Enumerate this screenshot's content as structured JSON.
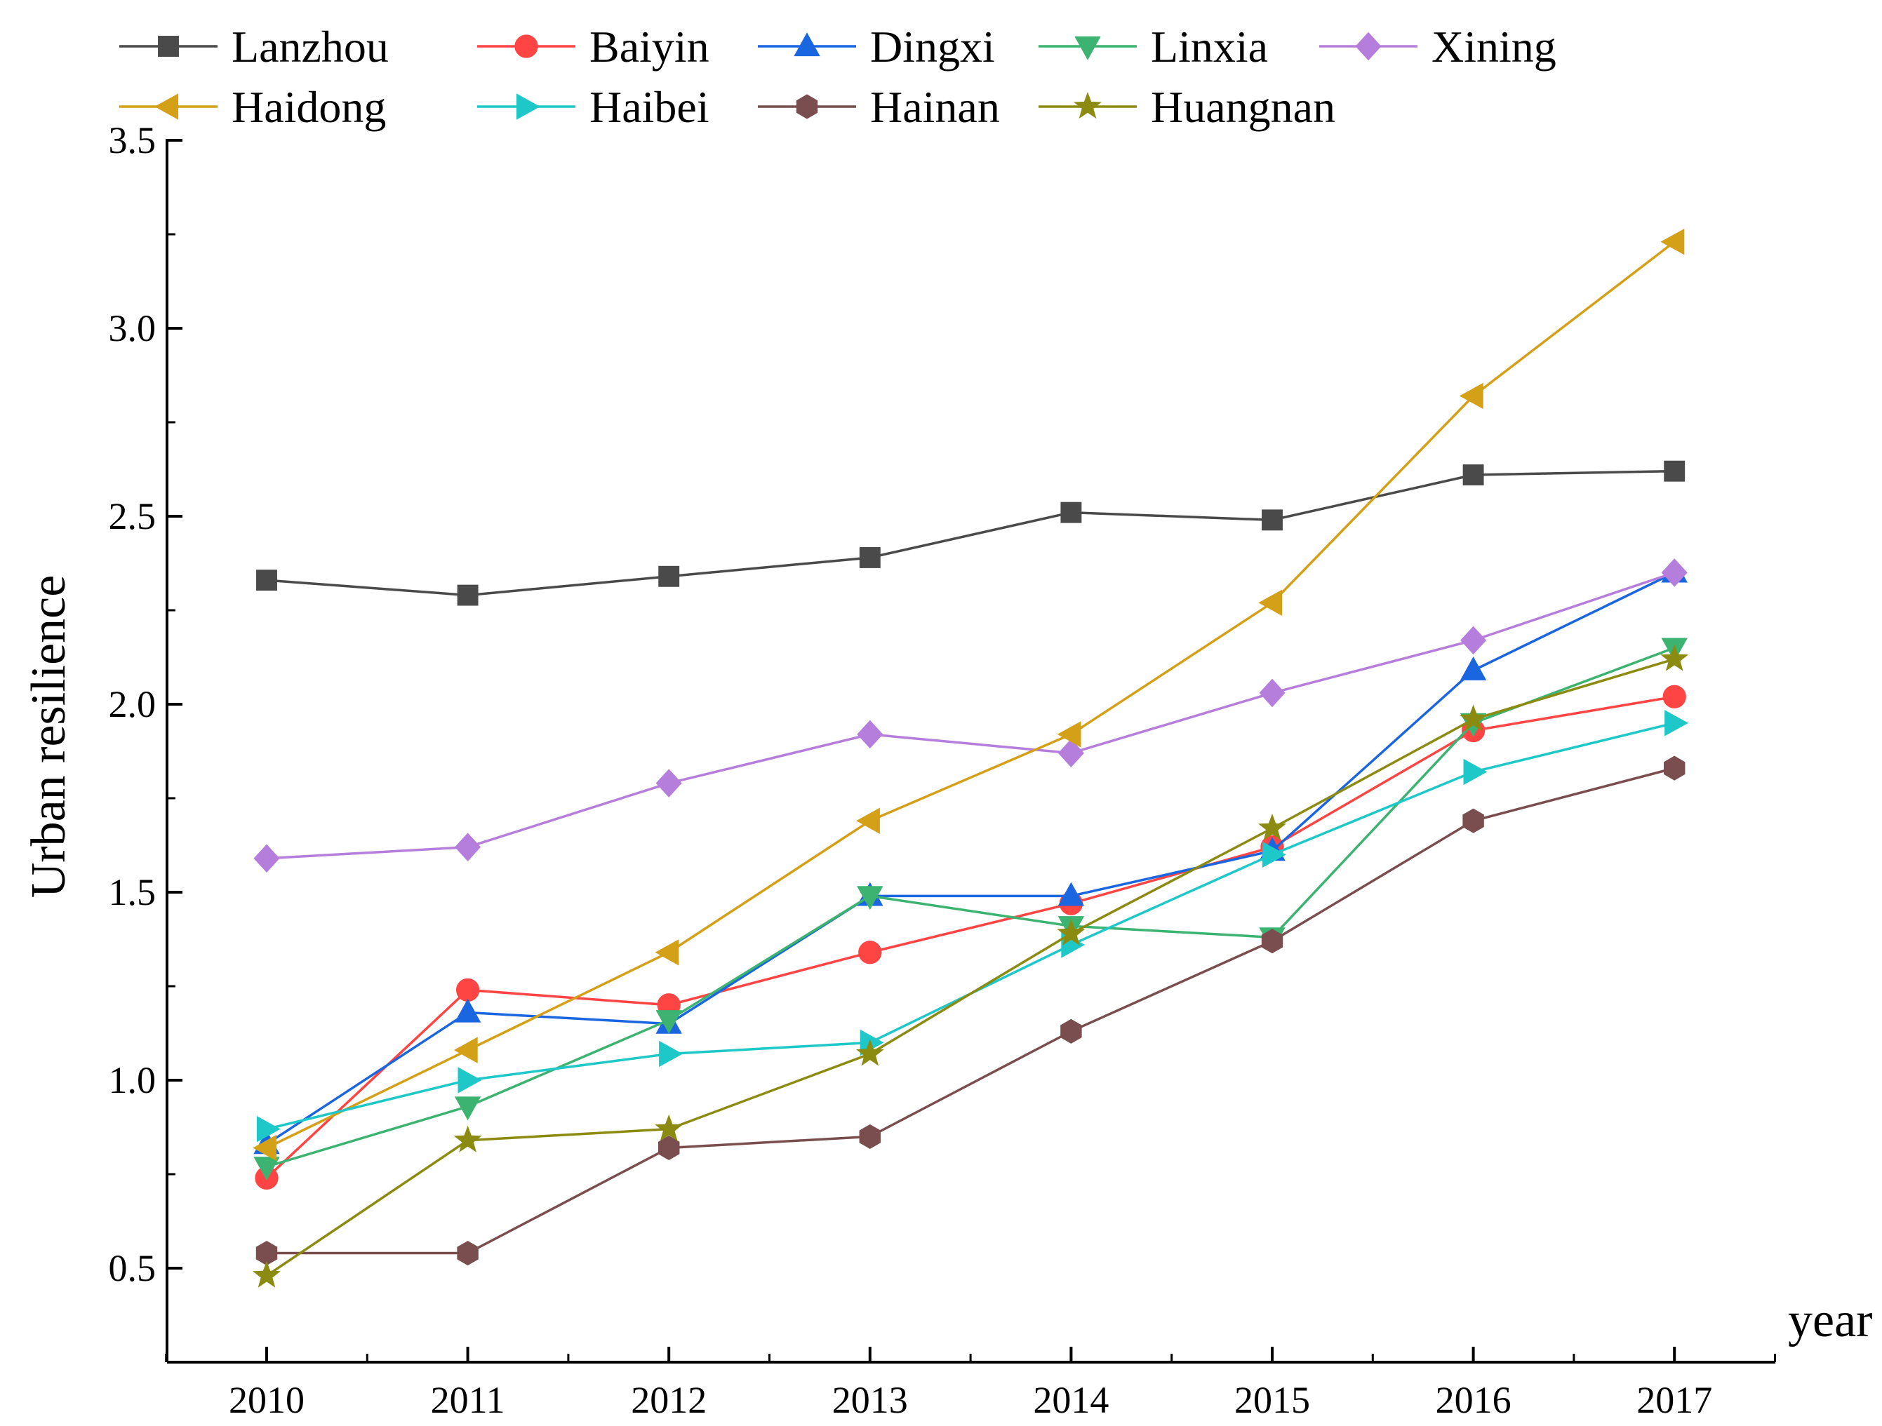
{
  "chart_data": {
    "type": "line",
    "title": "",
    "xlabel": "year",
    "ylabel": "Urban resilience",
    "categories": [
      "2010",
      "2011",
      "2012",
      "2013",
      "2014",
      "2015",
      "2016",
      "2017"
    ],
    "yticks": [
      "0.5",
      "1.0",
      "1.5",
      "2.0",
      "2.5",
      "3.0",
      "3.5"
    ],
    "ylim": [
      0.25,
      3.5
    ],
    "grid": false,
    "legend_position": "top",
    "series": [
      {
        "name": "Lanzhou",
        "color": "#4a4a4a",
        "marker": "square",
        "values": [
          2.33,
          2.29,
          2.34,
          2.39,
          2.51,
          2.49,
          2.61,
          2.62
        ]
      },
      {
        "name": "Baiyin",
        "color": "#ff4444",
        "marker": "circle",
        "values": [
          0.74,
          1.24,
          1.2,
          1.34,
          1.47,
          1.62,
          1.93,
          2.02
        ]
      },
      {
        "name": "Dingxi",
        "color": "#1a66e0",
        "marker": "triangle-up",
        "values": [
          0.83,
          1.18,
          1.15,
          1.49,
          1.49,
          1.61,
          2.09,
          2.35
        ]
      },
      {
        "name": "Linxia",
        "color": "#3cb371",
        "marker": "triangle-down",
        "values": [
          0.77,
          0.93,
          1.16,
          1.49,
          1.41,
          1.38,
          1.95,
          2.15
        ]
      },
      {
        "name": "Xining",
        "color": "#b57edc",
        "marker": "diamond",
        "values": [
          1.59,
          1.62,
          1.79,
          1.92,
          1.87,
          2.03,
          2.17,
          2.35
        ]
      },
      {
        "name": "Haidong",
        "color": "#d4a017",
        "marker": "triangle-left",
        "values": [
          0.82,
          1.08,
          1.34,
          1.69,
          1.92,
          2.27,
          2.82,
          3.23
        ]
      },
      {
        "name": "Haibei",
        "color": "#1ec8c8",
        "marker": "triangle-right",
        "values": [
          0.87,
          1.0,
          1.07,
          1.1,
          1.36,
          1.6,
          1.82,
          1.95
        ]
      },
      {
        "name": "Hainan",
        "color": "#7a4e4e",
        "marker": "hexagon",
        "values": [
          0.54,
          0.54,
          0.82,
          0.85,
          1.13,
          1.37,
          1.69,
          1.83
        ]
      },
      {
        "name": "Huangnan",
        "color": "#8b8b12",
        "marker": "star",
        "values": [
          0.48,
          0.84,
          0.87,
          1.07,
          1.39,
          1.67,
          1.96,
          2.12
        ]
      }
    ]
  }
}
